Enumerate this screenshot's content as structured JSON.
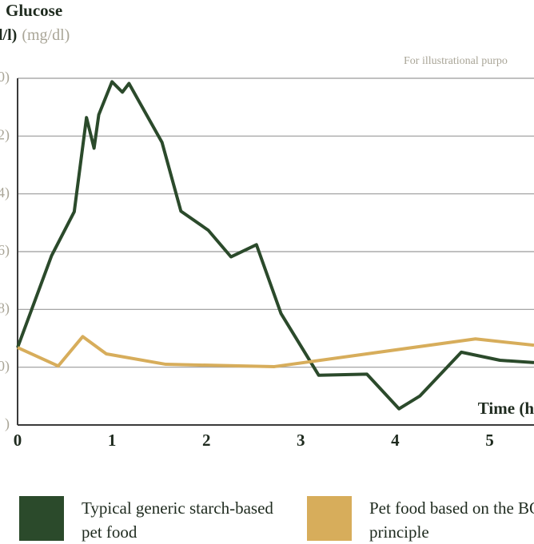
{
  "chart_data": {
    "type": "line",
    "ylabel": "Glucose",
    "ylabel_units": [
      "l/l)",
      "(mg/dl)"
    ],
    "note": "For illustrational purpo",
    "xlabel": "Time (h",
    "xlim": [
      0,
      5.47
    ],
    "xticks": [
      0,
      1,
      2,
      3,
      4,
      5
    ],
    "ylim": [
      0,
      6
    ],
    "yticks": [
      {
        "value": 0,
        "label": ")"
      },
      {
        "value": 1,
        "label": "0)"
      },
      {
        "value": 2,
        "label": "8)"
      },
      {
        "value": 3,
        "label": "6)"
      },
      {
        "value": 4,
        "label": "4)"
      },
      {
        "value": 5,
        "label": "2)"
      },
      {
        "value": 6,
        "label": "0)"
      }
    ],
    "grid": true,
    "series": [
      {
        "name": "Typical generic starch-based pet food",
        "color": "#2b4a2b",
        "x": [
          0,
          0.36,
          0.6,
          0.73,
          0.81,
          0.86,
          1.0,
          1.11,
          1.18,
          1.53,
          1.73,
          2.02,
          2.26,
          2.53,
          2.79,
          3.19,
          3.7,
          4.04,
          4.26,
          4.7,
          5.11,
          5.47
        ],
        "values": [
          1.34,
          2.93,
          3.69,
          5.32,
          4.79,
          5.37,
          5.94,
          5.76,
          5.91,
          4.89,
          3.7,
          3.37,
          2.91,
          3.12,
          1.93,
          0.86,
          0.88,
          0.28,
          0.5,
          1.26,
          1.12,
          1.08
        ]
      },
      {
        "name": "Pet food based on the BOF principle",
        "color": "#d7ad5b",
        "x": [
          0,
          0.43,
          0.69,
          0.94,
          1.57,
          2.72,
          4.85,
          5.47
        ],
        "values": [
          1.34,
          1.02,
          1.53,
          1.23,
          1.05,
          1.01,
          1.49,
          1.38
        ]
      }
    ]
  }
}
